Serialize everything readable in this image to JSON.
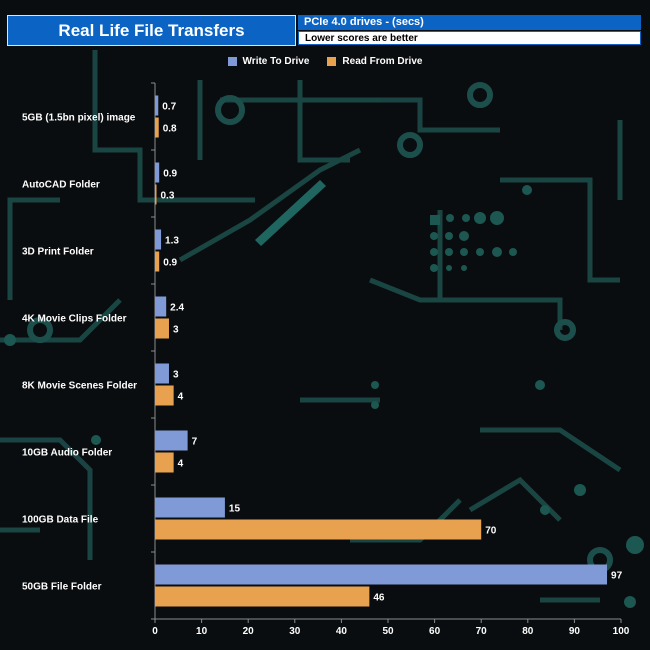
{
  "header": {
    "title": "Real Life File Transfers",
    "subtitle": "PCIe 4.0 drives - (secs)",
    "note": "Lower scores are better"
  },
  "colors": {
    "write": "#7f9ad6",
    "read": "#e8a24f",
    "title_bg": "#0b63c4",
    "background": "#0a0d0f"
  },
  "chart_data": {
    "type": "bar",
    "orientation": "horizontal",
    "title": "Real Life File Transfers",
    "subtitle": "PCIe 4.0 drives - (secs)",
    "note": "Lower scores are better",
    "categories": [
      "5GB (1.5bn pixel) image",
      "AutoCAD Folder",
      "3D Print Folder",
      "4K Movie Clips Folder",
      "8K Movie Scenes Folder",
      "10GB Audio Folder",
      "100GB Data File",
      "50GB File Folder"
    ],
    "series": [
      {
        "name": "Write To  Drive",
        "values": [
          0.7,
          0.9,
          1.3,
          2.4,
          3,
          7,
          15,
          97
        ]
      },
      {
        "name": "Read From  Drive",
        "values": [
          0.8,
          0.3,
          0.9,
          3,
          4,
          4,
          70,
          46
        ]
      }
    ],
    "xlim": [
      0,
      100
    ],
    "xticks": [
      0,
      10,
      20,
      30,
      40,
      50,
      60,
      70,
      80,
      90,
      100
    ],
    "legend_position": "top-center",
    "grid": false
  }
}
